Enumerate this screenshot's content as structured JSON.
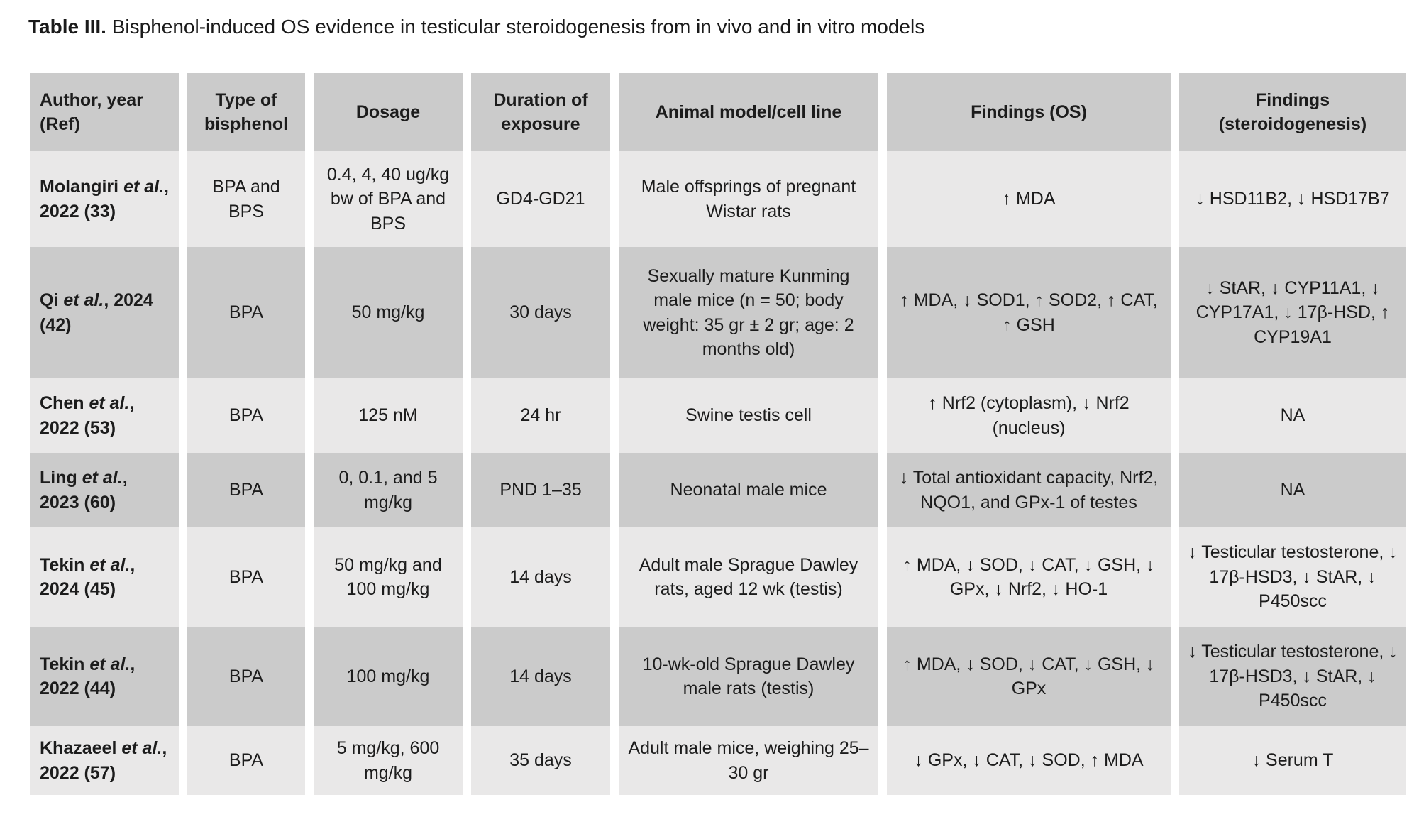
{
  "title": {
    "label": "Table III.",
    "text": " Bisphenol-induced OS evidence in testicular steroidogenesis from in vivo and in vitro models"
  },
  "table": {
    "headers": [
      "Author, year (Ref)",
      "Type of bisphenol",
      "Dosage",
      "Duration of exposure",
      "Animal model/cell line",
      "Findings (OS)",
      "Findings (steroidogenesis)"
    ],
    "rows": [
      {
        "author": [
          "Molangiri ",
          "et al.",
          ", 2022 (33)"
        ],
        "type": "BPA and BPS",
        "dosage": "0.4, 4, 40 ug/kg bw of BPA and BPS",
        "duration": "GD4-GD21",
        "model": "Male offsprings of pregnant Wistar rats",
        "findings_os": "↑ MDA",
        "findings_steroid": "↓ HSD11B2, ↓ HSD17B7"
      },
      {
        "author": [
          "Qi ",
          "et al.",
          ", 2024 (42)"
        ],
        "type": "BPA",
        "dosage": "50 mg/kg",
        "duration": "30 days",
        "model": "Sexually mature Kunming male mice (n = 50; body weight: 35 gr ± 2 gr; age: 2 months old)",
        "findings_os": "↑ MDA, ↓ SOD1, ↑ SOD2, ↑ CAT, ↑ GSH",
        "findings_steroid": "↓ StAR, ↓ CYP11A1, ↓ CYP17A1, ↓ 17β-HSD, ↑ CYP19A1"
      },
      {
        "author": [
          "Chen ",
          "et al.",
          ", 2022 (53)"
        ],
        "type": "BPA",
        "dosage": "125 nM",
        "duration": "24 hr",
        "model": "Swine testis cell",
        "findings_os": "↑ Nrf2 (cytoplasm), ↓ Nrf2 (nucleus)",
        "findings_steroid": "NA"
      },
      {
        "author": [
          "Ling ",
          "et al.",
          ", 2023 (60)"
        ],
        "type": "BPA",
        "dosage": "0, 0.1, and 5 mg/kg",
        "duration": "PND 1–35",
        "model": "Neonatal male mice",
        "findings_os": "↓ Total antioxidant capacity, Nrf2, NQO1, and GPx-1 of testes",
        "findings_steroid": "NA"
      },
      {
        "author": [
          "Tekin ",
          "et al.",
          ", 2024 (45)"
        ],
        "type": "BPA",
        "dosage": "50 mg/kg and 100 mg/kg",
        "duration": "14 days",
        "model": "Adult male Sprague Dawley rats, aged 12 wk (testis)",
        "findings_os": "↑ MDA, ↓ SOD, ↓ CAT, ↓ GSH, ↓ GPx, ↓ Nrf2, ↓ HO-1",
        "findings_steroid": "↓ Testicular testosterone, ↓ 17β-HSD3, ↓ StAR, ↓ P450scc"
      },
      {
        "author": [
          "Tekin ",
          "et al.",
          ", 2022 (44)"
        ],
        "type": "BPA",
        "dosage": "100 mg/kg",
        "duration": "14 days",
        "model": "10-wk-old Sprague Dawley male rats (testis)",
        "findings_os": "↑ MDA, ↓ SOD, ↓ CAT, ↓ GSH, ↓ GPx",
        "findings_steroid": "↓ Testicular testosterone, ↓ 17β-HSD3, ↓ StAR, ↓ P450scc"
      },
      {
        "author": [
          "Khazaeel  ",
          "et al.",
          ", 2022 (57)"
        ],
        "type": "BPA",
        "dosage": "5 mg/kg, 600 mg/kg",
        "duration": "35 days",
        "model": "Adult male mice, weighing 25–30 gr",
        "findings_os": "↓ GPx, ↓ CAT, ↓ SOD, ↑ MDA",
        "findings_steroid": "↓ Serum T"
      }
    ]
  }
}
